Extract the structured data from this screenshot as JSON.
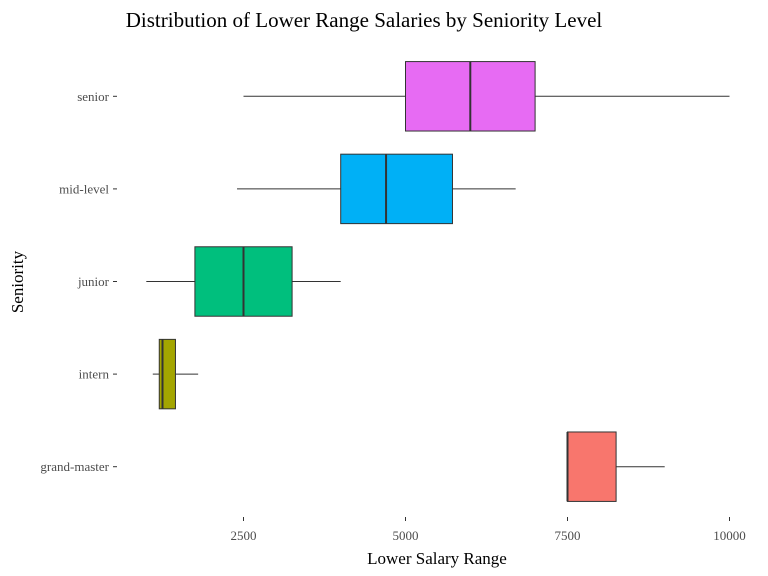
{
  "chart_data": {
    "type": "boxplot",
    "orientation": "horizontal",
    "title": "Distribution of Lower Range Salaries by Seniority Level",
    "xlabel": "Lower Salary Range",
    "ylabel": "Seniority",
    "xlim": [
      0,
      10000
    ],
    "x_ticks": [
      {
        "value": 2500,
        "label": "2500"
      },
      {
        "value": 5000,
        "label": "5000"
      },
      {
        "value": 7500,
        "label": "7500"
      },
      {
        "value": 10000,
        "label": "10000"
      }
    ],
    "categories": [
      "grand-master",
      "intern",
      "junior",
      "mid-level",
      "senior"
    ],
    "boxes": [
      {
        "category": "grand-master",
        "min": 7500,
        "q1": 7500,
        "median": 7500,
        "q3": 8250,
        "max": 9000,
        "color": "#F8766D"
      },
      {
        "category": "intern",
        "min": 1100,
        "q1": 1200,
        "median": 1250,
        "q3": 1450,
        "max": 1800,
        "color": "#A3A500"
      },
      {
        "category": "junior",
        "min": 1000,
        "q1": 1750,
        "median": 2500,
        "q3": 3250,
        "max": 4000,
        "color": "#00BF7D"
      },
      {
        "category": "mid-level",
        "min": 2400,
        "q1": 4000,
        "median": 4700,
        "q3": 5725,
        "max": 6700,
        "color": "#00B0F6"
      },
      {
        "category": "senior",
        "min": 2500,
        "q1": 5000,
        "median": 6000,
        "q3": 7000,
        "max": 10000,
        "color": "#E76BF3"
      }
    ],
    "grid": false,
    "legend": "none"
  }
}
